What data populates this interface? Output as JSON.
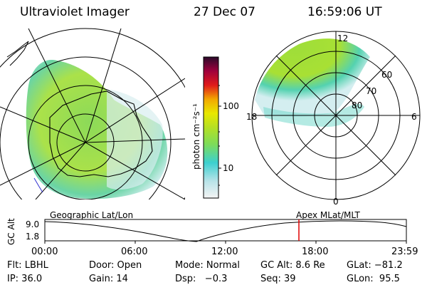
{
  "header": {
    "instrument": "Ultraviolet Imager",
    "date": "27 Dec 07",
    "time": "16:59:06 UT"
  },
  "colorbar": {
    "unit_label": "photon cm⁻²s⁻¹",
    "ticks": [
      "100",
      "10"
    ],
    "scale": "log",
    "colors": [
      "#f2f2f2",
      "#b8e3e8",
      "#44d2d2",
      "#86e05a",
      "#b6e024",
      "#e8e800",
      "#f2b000",
      "#e01a1a",
      "#a0003c",
      "#3a0a3a"
    ]
  },
  "polar_plot": {
    "mlt_labels": {
      "top": "12",
      "left": "18",
      "right": "6",
      "bottom": "0"
    },
    "lat_labels": [
      "60",
      "70",
      "80"
    ]
  },
  "timeline": {
    "left_label": "Geographic Lat/Lon",
    "right_label": "Apex MLat/MLT",
    "y_label": "GC Alt",
    "y_ticks": [
      "9.0",
      "1.8"
    ],
    "x_ticks": [
      "00:00",
      "06:00",
      "12:00",
      "18:00",
      "23:59"
    ],
    "marker_time": "16:59:06",
    "marker_color": "#e00000"
  },
  "footer": {
    "rows": [
      [
        "Flt: LBHL",
        "Door: Open",
        "Mode: Normal",
        "GC Alt: 8.6 Re",
        "GLat: −81.2"
      ],
      [
        "IP: 36.0",
        "Gain: 14",
        "Dsp:   −0.3",
        "Seq: 39",
        "GLon:  95.5"
      ]
    ]
  }
}
